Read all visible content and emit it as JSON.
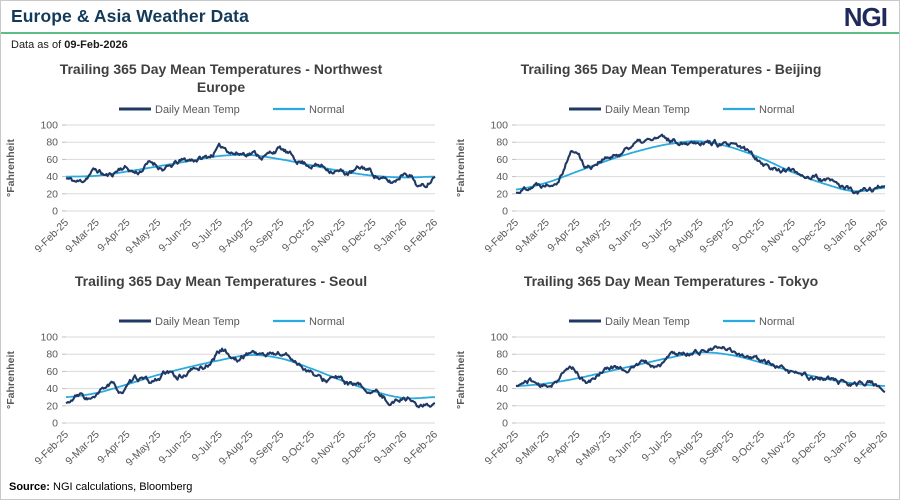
{
  "header": {
    "title": "Europe & Asia Weather Data",
    "logo": "NGI",
    "as_of_label": "Data as of",
    "as_of_date": "09-Feb-2026"
  },
  "footer": {
    "source_label": "Source:",
    "source_text": "NGI calculations, Bloomberg"
  },
  "colors": {
    "daily_line": "#1F3864",
    "normal_line": "#2BAADF",
    "header_title": "#143A5A",
    "logo": "#1F2A5B",
    "rule_green": "#5CBE86",
    "chart_title": "#404040",
    "axis_text": "#595959",
    "gridline": "#D9D9D9",
    "tickmark": "#BFBFBF"
  },
  "chart_data": [
    {
      "type": "line",
      "title": "Trailing 365 Day Mean Temperatures - Northwest Europe",
      "title_lines": [
        "Trailing 365 Day Mean Temperatures - Northwest",
        "Europe"
      ],
      "ylabel": "°Fahrenheit",
      "ylim": [
        0,
        100
      ],
      "yticks": [
        0,
        20,
        40,
        60,
        80,
        100
      ],
      "x_tick_labels": [
        "9-Feb-25",
        "9-Mar-25",
        "9-Apr-25",
        "9-May-25",
        "9-Jun-25",
        "9-Jul-25",
        "9-Aug-25",
        "9-Sep-25",
        "9-Oct-25",
        "9-Nov-25",
        "9-Dec-25",
        "9-Jan-26",
        "9-Feb-26"
      ],
      "legend_position": "top-center",
      "grid": "horizontal",
      "series": [
        {
          "name": "Daily Mean Temp",
          "color": "#1F3864",
          "sampling": "biweekly-anchors",
          "values": [
            38,
            34,
            47,
            41,
            51,
            45,
            56,
            49,
            57,
            60,
            63,
            74,
            67,
            68,
            64,
            72,
            62,
            55,
            52,
            47,
            44,
            50,
            40,
            33,
            46,
            28,
            40
          ],
          "jitter": 5,
          "seed": 11
        },
        {
          "name": "Normal",
          "color": "#2BAADF",
          "sampling": "monthly-at-ticks",
          "values": [
            40,
            41,
            46,
            52,
            58,
            64,
            65,
            60,
            53,
            46,
            41,
            39,
            40
          ],
          "jitter": 0,
          "seed": 0
        }
      ]
    },
    {
      "type": "line",
      "title": "Trailing 365 Day Mean Temperatures - Beijing",
      "title_lines": [
        "Trailing 365 Day Mean Temperatures - Beijing"
      ],
      "ylabel": "°Fahrenheit",
      "ylim": [
        0,
        100
      ],
      "yticks": [
        0,
        20,
        40,
        60,
        80,
        100
      ],
      "x_tick_labels": [
        "9-Feb-25",
        "9-Mar-25",
        "9-Apr-25",
        "9-May-25",
        "9-Jun-25",
        "9-Jul-25",
        "9-Aug-25",
        "9-Sep-25",
        "9-Oct-25",
        "9-Nov-25",
        "9-Dec-25",
        "9-Jan-26",
        "9-Feb-26"
      ],
      "legend_position": "top-center",
      "grid": "horizontal",
      "series": [
        {
          "name": "Daily Mean Temp",
          "color": "#1F3864",
          "sampling": "biweekly-anchors",
          "values": [
            21,
            30,
            32,
            40,
            70,
            52,
            60,
            63,
            76,
            80,
            84,
            82,
            81,
            82,
            79,
            75,
            72,
            62,
            50,
            48,
            44,
            39,
            34,
            29,
            21,
            25,
            29
          ],
          "jitter": 5,
          "seed": 22
        },
        {
          "name": "Normal",
          "color": "#2BAADF",
          "sampling": "monthly-at-ticks",
          "values": [
            25,
            33,
            46,
            59,
            70,
            78,
            81,
            74,
            61,
            45,
            32,
            23,
            27
          ],
          "jitter": 0,
          "seed": 0
        }
      ]
    },
    {
      "type": "line",
      "title": "Trailing 365 Day Mean Temperatures - Seoul",
      "title_lines": [
        "Trailing 365 Day Mean Temperatures - Seoul"
      ],
      "ylabel": "°Fahrenheit",
      "ylim": [
        0,
        100
      ],
      "yticks": [
        0,
        20,
        40,
        60,
        80,
        100
      ],
      "x_tick_labels": [
        "9-Feb-25",
        "9-Mar-25",
        "9-Apr-25",
        "9-May-25",
        "9-Jun-25",
        "9-Jul-25",
        "9-Aug-25",
        "9-Sep-25",
        "9-Oct-25",
        "9-Nov-25",
        "9-Dec-25",
        "9-Jan-26",
        "9-Feb-26"
      ],
      "legend_position": "top-center",
      "grid": "horizontal",
      "series": [
        {
          "name": "Daily Mean Temp",
          "color": "#1F3864",
          "sampling": "biweekly-anchors",
          "values": [
            23,
            31,
            28,
            44,
            37,
            51,
            47,
            57,
            54,
            62,
            68,
            85,
            73,
            83,
            79,
            81,
            74,
            62,
            50,
            52,
            44,
            40,
            33,
            25,
            30,
            19,
            23
          ],
          "jitter": 5,
          "seed": 33
        },
        {
          "name": "Normal",
          "color": "#2BAADF",
          "sampling": "monthly-at-ticks",
          "values": [
            30,
            35,
            45,
            56,
            65,
            73,
            79,
            75,
            63,
            49,
            37,
            29,
            30
          ],
          "jitter": 0,
          "seed": 0
        }
      ]
    },
    {
      "type": "line",
      "title": "Trailing 365 Day Mean Temperatures - Tokyo",
      "title_lines": [
        "Trailing 365 Day Mean Temperatures - Tokyo"
      ],
      "ylabel": "°Fahrenheit",
      "ylim": [
        0,
        100
      ],
      "yticks": [
        0,
        20,
        40,
        60,
        80,
        100
      ],
      "x_tick_labels": [
        "9-Feb-25",
        "9-Mar-25",
        "9-Apr-25",
        "9-May-25",
        "9-Jun-25",
        "9-Jul-25",
        "9-Aug-25",
        "9-Sep-25",
        "9-Oct-25",
        "9-Nov-25",
        "9-Dec-25",
        "9-Jan-26",
        "9-Feb-26"
      ],
      "legend_position": "top-center",
      "grid": "horizontal",
      "series": [
        {
          "name": "Daily Mean Temp",
          "color": "#1F3864",
          "sampling": "biweekly-anchors",
          "values": [
            43,
            49,
            42,
            52,
            64,
            46,
            60,
            65,
            63,
            70,
            66,
            79,
            81,
            84,
            86,
            85,
            80,
            74,
            68,
            60,
            57,
            52,
            52,
            46,
            44,
            48,
            36
          ],
          "jitter": 4.5,
          "seed": 44
        },
        {
          "name": "Normal",
          "color": "#2BAADF",
          "sampling": "monthly-at-ticks",
          "values": [
            43,
            46,
            52,
            60,
            68,
            76,
            82,
            79,
            70,
            60,
            52,
            46,
            43
          ],
          "jitter": 0,
          "seed": 0
        }
      ]
    }
  ]
}
